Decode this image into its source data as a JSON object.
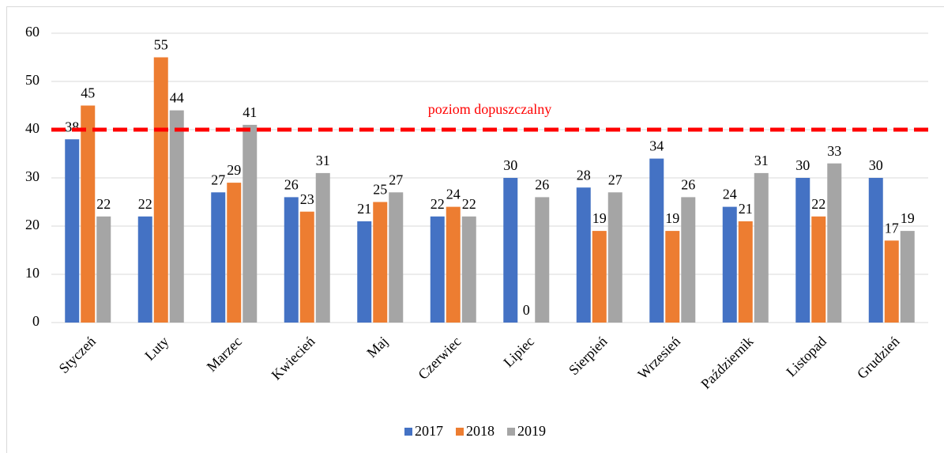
{
  "chart_data": {
    "type": "bar",
    "categories": [
      "Styczeń",
      "Luty",
      "Marzec",
      "Kwiecień",
      "Maj",
      "Czerwiec",
      "Lipiec",
      "Sierpień",
      "Wrzesień",
      "Październik",
      "Listopad",
      "Grudzień"
    ],
    "series": [
      {
        "name": "2017",
        "color": "#4472c4",
        "values": [
          38,
          22,
          27,
          26,
          21,
          22,
          30,
          28,
          34,
          24,
          30,
          30
        ]
      },
      {
        "name": "2018",
        "color": "#ed7d31",
        "values": [
          45,
          55,
          29,
          23,
          25,
          24,
          0,
          19,
          19,
          21,
          22,
          17
        ]
      },
      {
        "name": "2019",
        "color": "#a5a5a5",
        "values": [
          22,
          44,
          41,
          31,
          27,
          22,
          26,
          27,
          26,
          31,
          33,
          19
        ]
      }
    ],
    "ylim": [
      0,
      60
    ],
    "yticks": [
      0,
      10,
      20,
      30,
      40,
      50,
      60
    ],
    "grid": true,
    "reference_line": {
      "value": 40,
      "label": "poziom dopuszczalny",
      "color": "#ff0000"
    },
    "legend": "bottom"
  }
}
